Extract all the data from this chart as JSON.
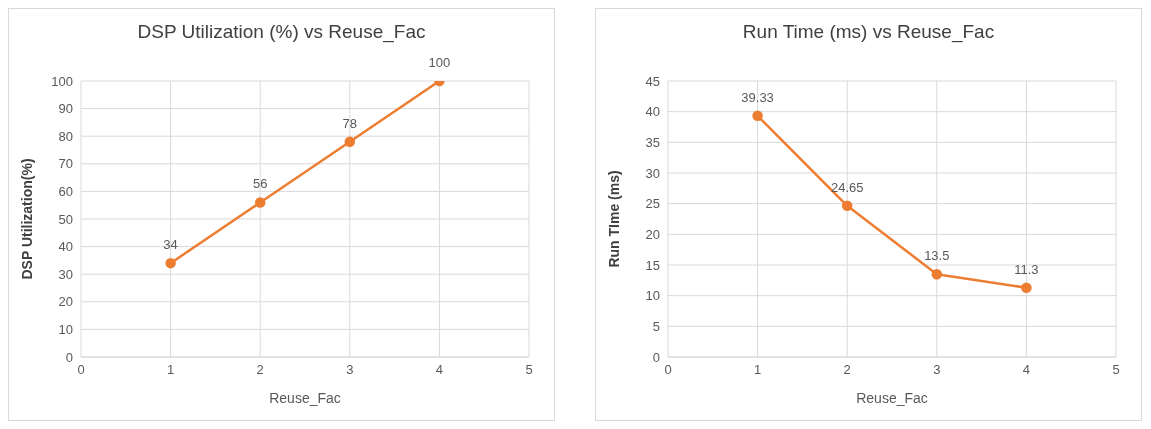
{
  "chart_data": [
    {
      "type": "line",
      "title": "DSP Utilization (%) vs Reuse_Fac",
      "xlabel": "Reuse_Fac",
      "ylabel": "DSP Utilization(%)",
      "x": [
        1,
        2,
        3,
        4
      ],
      "series": [
        {
          "color": "#ed7d31",
          "values": [
            34,
            56,
            78,
            100
          ]
        }
      ],
      "xlim": [
        0,
        5
      ],
      "xticks": [
        0,
        1,
        2,
        3,
        4,
        5
      ],
      "ylim": [
        0,
        100
      ],
      "yticks": [
        0,
        10,
        20,
        30,
        40,
        50,
        60,
        70,
        80,
        90,
        100
      ],
      "grid": true,
      "marker": "circle",
      "data_labels": true
    },
    {
      "type": "line",
      "title": "Run Time (ms) vs Reuse_Fac",
      "xlabel": "Reuse_Fac",
      "ylabel": "Run TIme (ms)",
      "x": [
        1,
        2,
        3,
        4
      ],
      "series": [
        {
          "color": "#ed7d31",
          "values": [
            39.33,
            24.65,
            13.5,
            11.3
          ]
        }
      ],
      "xlim": [
        0,
        5
      ],
      "xticks": [
        0,
        1,
        2,
        3,
        4,
        5
      ],
      "ylim": [
        0,
        45
      ],
      "yticks": [
        0,
        5,
        10,
        15,
        20,
        25,
        30,
        35,
        40,
        45
      ],
      "grid": true,
      "marker": "circle",
      "data_labels": true
    }
  ]
}
